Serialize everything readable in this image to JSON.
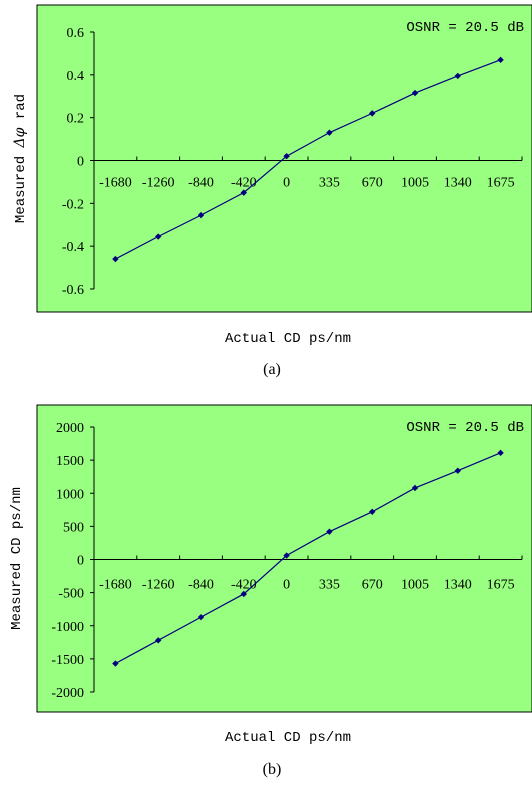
{
  "chart_data": [
    {
      "type": "line",
      "panel_label": "(a)",
      "annotation": "OSNR = 20.5 dB",
      "xlabel": "Actual CD ps/nm",
      "ylabel_prefix": "Measured ",
      "ylabel_symbol": "Δφ",
      "ylabel_suffix": " rad",
      "x_tick_labels": [
        "-1680",
        "-1260",
        "-840",
        "-420",
        "0",
        "335",
        "670",
        "1005",
        "1340",
        "1675"
      ],
      "y_tick_labels": [
        "-0.6",
        "-0.4",
        "-0.2",
        "0",
        "0.2",
        "0.4",
        "0.6"
      ],
      "y_ticks": [
        -0.6,
        -0.4,
        -0.2,
        0,
        0.2,
        0.4,
        0.6
      ],
      "ylim": [
        -0.6,
        0.6
      ],
      "grid": false,
      "background_color": "#99ff80",
      "marker_color": "#000080",
      "series": [
        {
          "values": [
            -0.46,
            -0.355,
            -0.255,
            -0.15,
            0.02,
            0.13,
            0.22,
            0.315,
            0.395,
            0.47
          ]
        }
      ]
    },
    {
      "type": "line",
      "panel_label": "(b)",
      "annotation": "OSNR = 20.5 dB",
      "xlabel": "Actual CD ps/nm",
      "ylabel_prefix": "Measured CD ps/nm",
      "ylabel_symbol": "",
      "ylabel_suffix": "",
      "x_tick_labels": [
        "-1680",
        "-1260",
        "-840",
        "-420",
        "0",
        "335",
        "670",
        "1005",
        "1340",
        "1675"
      ],
      "y_tick_labels": [
        "-2000",
        "-1500",
        "-1000",
        "-500",
        "0",
        "500",
        "1000",
        "1500",
        "2000"
      ],
      "y_ticks": [
        -2000,
        -1500,
        -1000,
        -500,
        0,
        500,
        1000,
        1500,
        2000
      ],
      "ylim": [
        -2000,
        2000
      ],
      "grid": false,
      "background_color": "#99ff80",
      "marker_color": "#000080",
      "series": [
        {
          "values": [
            -1570,
            -1220,
            -870,
            -520,
            60,
            420,
            720,
            1080,
            1340,
            1610
          ]
        }
      ]
    }
  ]
}
